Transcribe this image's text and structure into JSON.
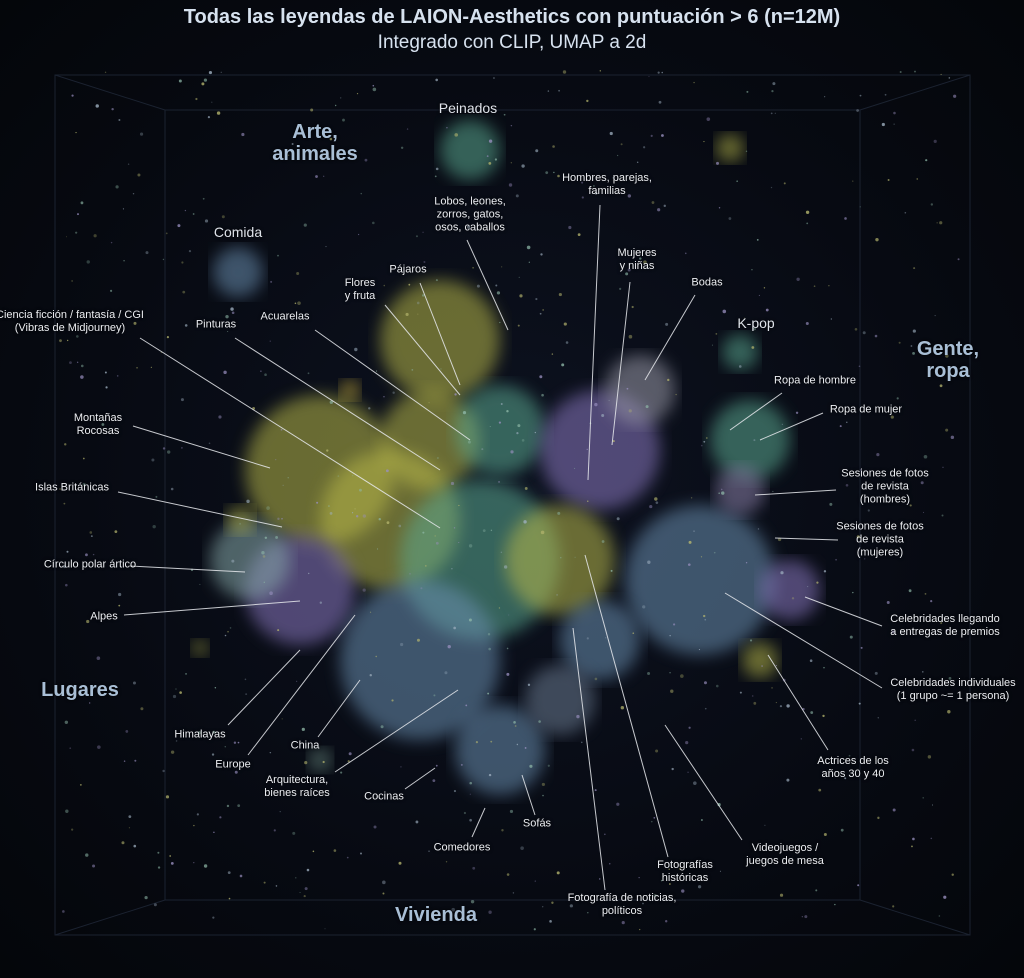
{
  "title": "Todas las leyendas de LAION-Aesthetics con puntuación > 6 (n=12M)",
  "subtitle": "Integrado con CLIP, UMAP a 2d",
  "regions": {
    "art": [
      "Arte,",
      "animales"
    ],
    "people": [
      "Gente,",
      "ropa"
    ],
    "places": [
      "Lugares"
    ],
    "housing": [
      "Vivienda"
    ]
  },
  "labels": {
    "peinados": [
      "Peinados"
    ],
    "comida": [
      "Comida"
    ],
    "hombres": [
      "Hombres, parejas,",
      "familias"
    ],
    "lobos": [
      "Lobos, leones,",
      "zorros, gatos,",
      "osos, caballos"
    ],
    "mujeres": [
      "Mujeres",
      "y niñas"
    ],
    "bodas": [
      "Bodas"
    ],
    "pajaros": [
      "Pájaros"
    ],
    "flores": [
      "Flores",
      "y fruta"
    ],
    "scifi": [
      "Ciencia ficción / fantasía / CGI",
      "(Vibras de Midjourney)"
    ],
    "pinturas": [
      "Pinturas"
    ],
    "acuarelas": [
      "Acuarelas"
    ],
    "kpop": [
      "K-pop"
    ],
    "ropa_hombre": [
      "Ropa de hombre"
    ],
    "ropa_mujer": [
      "Ropa de mujer"
    ],
    "montanas": [
      "Montañas",
      "Rocosas"
    ],
    "sesiones_h": [
      "Sesiones de fotos",
      "de revista",
      "(hombres)"
    ],
    "islas": [
      "Islas Británicas"
    ],
    "sesiones_m": [
      "Sesiones de fotos",
      "de revista",
      "(mujeres)"
    ],
    "circulo": [
      "Círculo polar ártico"
    ],
    "alpes": [
      "Alpes"
    ],
    "celeb_premios": [
      "Celebridades llegando",
      "a entregas de premios"
    ],
    "celeb_ind": [
      "Celebridades individuales",
      "(1 grupo ~= 1 persona)"
    ],
    "himalayas": [
      "Himalayas"
    ],
    "china": [
      "China"
    ],
    "europe": [
      "Europe"
    ],
    "arquitectura": [
      "Arquitectura,",
      "bienes raíces"
    ],
    "actrices": [
      "Actrices de los",
      "años 30 y 40"
    ],
    "cocinas": [
      "Cocinas"
    ],
    "sofas": [
      "Sofás"
    ],
    "comedores": [
      "Comedores"
    ],
    "videojuegos": [
      "Videojuegos /",
      "juegos de mesa"
    ],
    "historicas": [
      "Fotografías",
      "históricas"
    ],
    "noticias": [
      "Fotografía de noticias,",
      "políticos"
    ]
  },
  "colors": {
    "yellow_green": "#b8b84a",
    "purple": "#8a78c0",
    "teal": "#5aa890",
    "blue": "#6a8fb0",
    "background": "#070a12"
  }
}
